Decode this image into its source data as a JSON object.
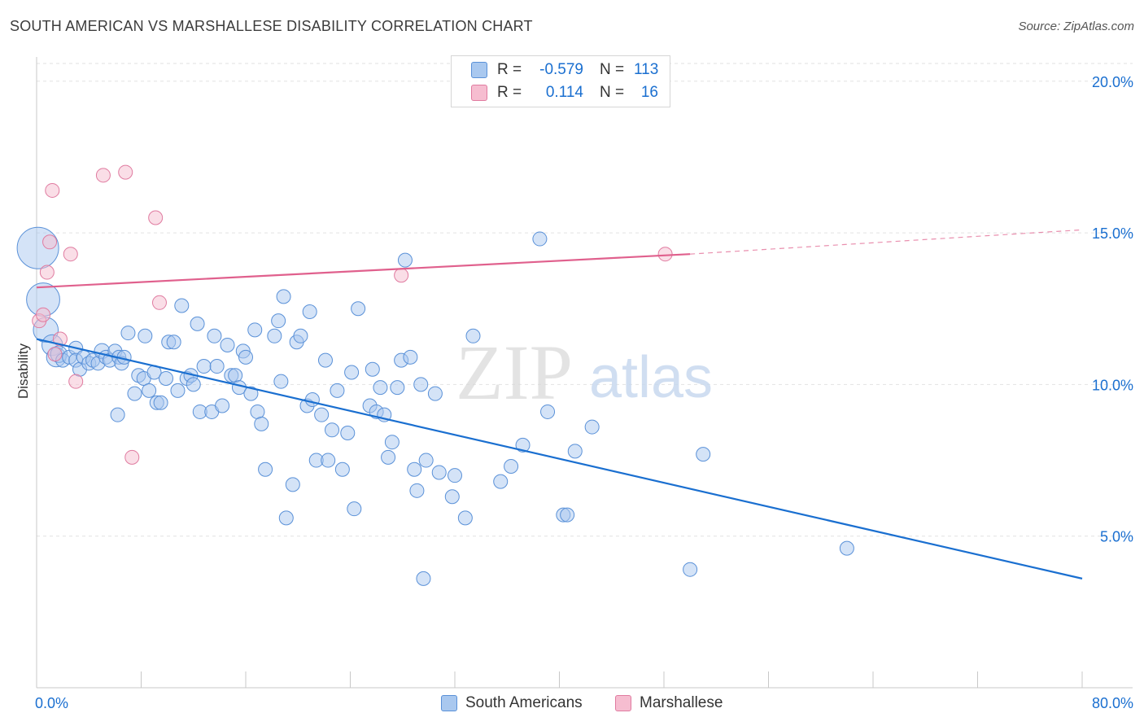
{
  "header": {
    "title": "SOUTH AMERICAN VS MARSHALLESE DISABILITY CORRELATION CHART",
    "source": "Source: ZipAtlas.com"
  },
  "watermark": {
    "zip": "ZIP",
    "atlas": "atlas"
  },
  "legend": {
    "rows": [
      {
        "r_label": "R =",
        "r_value": "-0.579",
        "n_label": "N =",
        "n_value": "113",
        "color": "#a9c8ef",
        "border": "#5a91d8"
      },
      {
        "r_label": "R =",
        "r_value": "0.114",
        "n_label": "N =",
        "n_value": "16",
        "color": "#f6bdd0",
        "border": "#e07ba0"
      }
    ]
  },
  "bottom_legend": {
    "items": [
      {
        "label": "South Americans",
        "color": "#a9c8ef",
        "border": "#5a91d8"
      },
      {
        "label": "Marshallese",
        "color": "#f6bdd0",
        "border": "#e07ba0"
      }
    ]
  },
  "chart_data": {
    "type": "scatter",
    "title": "SOUTH AMERICAN VS MARSHALLESE DISABILITY CORRELATION CHART",
    "xlabel": "",
    "ylabel": "Disability",
    "xlim": [
      0,
      80
    ],
    "ylim": [
      0,
      20.8
    ],
    "x_tick_labels": [
      "0.0%",
      "80.0%"
    ],
    "y_ticks": [
      5,
      10,
      15,
      20
    ],
    "y_tick_labels": [
      "5.0%",
      "10.0%",
      "15.0%",
      "20.0%"
    ],
    "grid": true,
    "legend_position": "top-center",
    "series": [
      {
        "name": "South Americans",
        "color": "#5a91d8",
        "fill": "#a9c8ef",
        "trend": {
          "x": [
            0,
            80
          ],
          "y": [
            11.5,
            3.6
          ]
        },
        "points": [
          {
            "x": 0.1,
            "y": 14.5,
            "s": 3
          },
          {
            "x": 0.5,
            "y": 12.8,
            "s": 2.4
          },
          {
            "x": 0.7,
            "y": 11.8,
            "s": 1.8
          },
          {
            "x": 1.2,
            "y": 11.3,
            "s": 1.5
          },
          {
            "x": 1.5,
            "y": 10.9,
            "s": 1.4
          },
          {
            "x": 1.7,
            "y": 11.0,
            "s": 1.2
          },
          {
            "x": 2,
            "y": 10.8,
            "s": 1
          },
          {
            "x": 2.5,
            "y": 10.9,
            "s": 1
          },
          {
            "x": 3,
            "y": 11.2,
            "s": 1
          },
          {
            "x": 3,
            "y": 10.8,
            "s": 1
          },
          {
            "x": 3.3,
            "y": 10.5,
            "s": 1
          },
          {
            "x": 3.6,
            "y": 10.9,
            "s": 1
          },
          {
            "x": 4,
            "y": 10.7,
            "s": 1
          },
          {
            "x": 4.3,
            "y": 10.8,
            "s": 1
          },
          {
            "x": 4.7,
            "y": 10.7,
            "s": 1
          },
          {
            "x": 5,
            "y": 11.1,
            "s": 1.1
          },
          {
            "x": 5.3,
            "y": 10.9,
            "s": 1
          },
          {
            "x": 5.6,
            "y": 10.8,
            "s": 1
          },
          {
            "x": 6,
            "y": 11.1,
            "s": 1
          },
          {
            "x": 6.3,
            "y": 10.9,
            "s": 1
          },
          {
            "x": 6.5,
            "y": 10.7,
            "s": 1
          },
          {
            "x": 6.7,
            "y": 10.9,
            "s": 1
          },
          {
            "x": 6.2,
            "y": 9.0,
            "s": 1
          },
          {
            "x": 7,
            "y": 11.7,
            "s": 1
          },
          {
            "x": 7.5,
            "y": 9.7,
            "s": 1
          },
          {
            "x": 7.8,
            "y": 10.3,
            "s": 1
          },
          {
            "x": 8.2,
            "y": 10.2,
            "s": 1
          },
          {
            "x": 8.3,
            "y": 11.6,
            "s": 1
          },
          {
            "x": 8.6,
            "y": 9.8,
            "s": 1
          },
          {
            "x": 9,
            "y": 10.4,
            "s": 1
          },
          {
            "x": 9.2,
            "y": 9.4,
            "s": 1
          },
          {
            "x": 9.5,
            "y": 9.4,
            "s": 1
          },
          {
            "x": 9.9,
            "y": 10.2,
            "s": 1
          },
          {
            "x": 10.1,
            "y": 11.4,
            "s": 1
          },
          {
            "x": 10.5,
            "y": 11.4,
            "s": 1
          },
          {
            "x": 10.8,
            "y": 9.8,
            "s": 1
          },
          {
            "x": 11.1,
            "y": 12.6,
            "s": 1
          },
          {
            "x": 11.5,
            "y": 10.2,
            "s": 1
          },
          {
            "x": 11.8,
            "y": 10.3,
            "s": 1
          },
          {
            "x": 12,
            "y": 10.0,
            "s": 1
          },
          {
            "x": 12.3,
            "y": 12.0,
            "s": 1
          },
          {
            "x": 12.5,
            "y": 9.1,
            "s": 1
          },
          {
            "x": 12.8,
            "y": 10.6,
            "s": 1
          },
          {
            "x": 13.4,
            "y": 9.1,
            "s": 1
          },
          {
            "x": 13.6,
            "y": 11.6,
            "s": 1
          },
          {
            "x": 13.8,
            "y": 10.6,
            "s": 1
          },
          {
            "x": 14.2,
            "y": 9.3,
            "s": 1
          },
          {
            "x": 14.6,
            "y": 11.3,
            "s": 1
          },
          {
            "x": 14.9,
            "y": 10.3,
            "s": 1
          },
          {
            "x": 15.2,
            "y": 10.3,
            "s": 1
          },
          {
            "x": 15.5,
            "y": 9.9,
            "s": 1
          },
          {
            "x": 15.8,
            "y": 11.1,
            "s": 1
          },
          {
            "x": 16,
            "y": 10.9,
            "s": 1
          },
          {
            "x": 16.4,
            "y": 9.7,
            "s": 1
          },
          {
            "x": 16.7,
            "y": 11.8,
            "s": 1
          },
          {
            "x": 16.9,
            "y": 9.1,
            "s": 1
          },
          {
            "x": 17.2,
            "y": 8.7,
            "s": 1
          },
          {
            "x": 17.5,
            "y": 7.2,
            "s": 1
          },
          {
            "x": 18.2,
            "y": 11.6,
            "s": 1
          },
          {
            "x": 18.5,
            "y": 12.1,
            "s": 1
          },
          {
            "x": 18.7,
            "y": 10.1,
            "s": 1
          },
          {
            "x": 18.9,
            "y": 12.9,
            "s": 1
          },
          {
            "x": 19.1,
            "y": 5.6,
            "s": 1
          },
          {
            "x": 19.6,
            "y": 6.7,
            "s": 1
          },
          {
            "x": 19.9,
            "y": 11.4,
            "s": 1
          },
          {
            "x": 20.2,
            "y": 11.6,
            "s": 1
          },
          {
            "x": 20.7,
            "y": 9.3,
            "s": 1
          },
          {
            "x": 20.9,
            "y": 12.4,
            "s": 1
          },
          {
            "x": 21.1,
            "y": 9.5,
            "s": 1
          },
          {
            "x": 21.4,
            "y": 7.5,
            "s": 1
          },
          {
            "x": 21.8,
            "y": 9.0,
            "s": 1
          },
          {
            "x": 22.1,
            "y": 10.8,
            "s": 1
          },
          {
            "x": 22.3,
            "y": 7.5,
            "s": 1
          },
          {
            "x": 22.6,
            "y": 8.5,
            "s": 1
          },
          {
            "x": 23,
            "y": 9.8,
            "s": 1
          },
          {
            "x": 23.4,
            "y": 7.2,
            "s": 1
          },
          {
            "x": 23.8,
            "y": 8.4,
            "s": 1
          },
          {
            "x": 24.1,
            "y": 10.4,
            "s": 1
          },
          {
            "x": 24.3,
            "y": 5.9,
            "s": 1
          },
          {
            "x": 24.6,
            "y": 12.5,
            "s": 1
          },
          {
            "x": 25.5,
            "y": 9.3,
            "s": 1
          },
          {
            "x": 25.7,
            "y": 10.5,
            "s": 1
          },
          {
            "x": 26,
            "y": 9.1,
            "s": 1
          },
          {
            "x": 26.3,
            "y": 9.9,
            "s": 1
          },
          {
            "x": 26.6,
            "y": 9.0,
            "s": 1
          },
          {
            "x": 26.9,
            "y": 7.6,
            "s": 1
          },
          {
            "x": 27.2,
            "y": 8.1,
            "s": 1
          },
          {
            "x": 27.6,
            "y": 9.9,
            "s": 1
          },
          {
            "x": 27.9,
            "y": 10.8,
            "s": 1
          },
          {
            "x": 28.2,
            "y": 14.1,
            "s": 1
          },
          {
            "x": 28.6,
            "y": 10.9,
            "s": 1
          },
          {
            "x": 28.9,
            "y": 7.2,
            "s": 1
          },
          {
            "x": 29.1,
            "y": 6.5,
            "s": 1
          },
          {
            "x": 29.4,
            "y": 10.0,
            "s": 1
          },
          {
            "x": 29.8,
            "y": 7.5,
            "s": 1
          },
          {
            "x": 29.6,
            "y": 3.6,
            "s": 1
          },
          {
            "x": 30.5,
            "y": 9.7,
            "s": 1
          },
          {
            "x": 30.8,
            "y": 7.1,
            "s": 1
          },
          {
            "x": 31.8,
            "y": 6.3,
            "s": 1
          },
          {
            "x": 32,
            "y": 7.0,
            "s": 1
          },
          {
            "x": 32.8,
            "y": 5.6,
            "s": 1
          },
          {
            "x": 33.4,
            "y": 11.6,
            "s": 1
          },
          {
            "x": 35.5,
            "y": 6.8,
            "s": 1
          },
          {
            "x": 36.3,
            "y": 7.3,
            "s": 1
          },
          {
            "x": 37.2,
            "y": 8.0,
            "s": 1
          },
          {
            "x": 38.5,
            "y": 14.8,
            "s": 1
          },
          {
            "x": 39.1,
            "y": 9.1,
            "s": 1
          },
          {
            "x": 40.3,
            "y": 5.7,
            "s": 1
          },
          {
            "x": 40.6,
            "y": 5.7,
            "s": 1
          },
          {
            "x": 41.2,
            "y": 7.8,
            "s": 1
          },
          {
            "x": 42.5,
            "y": 8.6,
            "s": 1
          },
          {
            "x": 50,
            "y": 3.9,
            "s": 1
          },
          {
            "x": 51,
            "y": 7.7,
            "s": 1
          },
          {
            "x": 62,
            "y": 4.6,
            "s": 1
          }
        ]
      },
      {
        "name": "Marshallese",
        "color": "#e07ba0",
        "fill": "#f6bdd0",
        "trend": {
          "x": [
            0,
            50
          ],
          "y": [
            13.2,
            14.3
          ]
        },
        "trend_dashed": {
          "x": [
            50,
            80
          ],
          "y": [
            14.3,
            15.1
          ]
        },
        "points": [
          {
            "x": 0.2,
            "y": 12.1,
            "s": 1
          },
          {
            "x": 0.5,
            "y": 12.3,
            "s": 1
          },
          {
            "x": 0.8,
            "y": 13.7,
            "s": 1
          },
          {
            "x": 1.0,
            "y": 14.7,
            "s": 1
          },
          {
            "x": 1.2,
            "y": 16.4,
            "s": 1
          },
          {
            "x": 1.4,
            "y": 11.0,
            "s": 1
          },
          {
            "x": 1.8,
            "y": 11.5,
            "s": 1
          },
          {
            "x": 2.6,
            "y": 14.3,
            "s": 1
          },
          {
            "x": 3.0,
            "y": 10.1,
            "s": 1
          },
          {
            "x": 5.1,
            "y": 16.9,
            "s": 1
          },
          {
            "x": 6.8,
            "y": 17.0,
            "s": 1
          },
          {
            "x": 7.3,
            "y": 7.6,
            "s": 1
          },
          {
            "x": 9.1,
            "y": 15.5,
            "s": 1
          },
          {
            "x": 9.4,
            "y": 12.7,
            "s": 1
          },
          {
            "x": 27.9,
            "y": 13.6,
            "s": 1
          },
          {
            "x": 48.1,
            "y": 14.3,
            "s": 1
          }
        ]
      }
    ]
  }
}
